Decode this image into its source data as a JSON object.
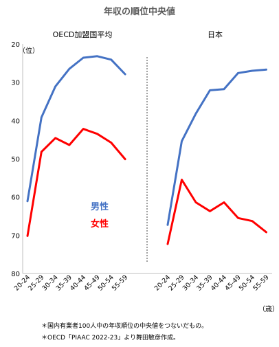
{
  "chart_data": {
    "type": "line",
    "title": "年収の順位中央値",
    "y_unit_label": "（位）",
    "x_unit_label": "（歳）",
    "ylim": [
      20,
      80
    ],
    "y_inverted": true,
    "y_ticks": [
      "20",
      "30",
      "40",
      "50",
      "60",
      "70",
      "80"
    ],
    "categories": [
      "20-24",
      "25-29",
      "30-34",
      "35-39",
      "40-44",
      "45-49",
      "50-54",
      "55-59"
    ],
    "grid": false,
    "legend_position": "inline-center",
    "panels": [
      {
        "title": "OECD加盟国平均",
        "series": [
          {
            "name": "男性",
            "color": "#4472c4",
            "values": [
              61.1,
              39.2,
              31.1,
              26.5,
              23.6,
              23.2,
              24.1,
              27.9
            ]
          },
          {
            "name": "女性",
            "color": "#ff0000",
            "values": [
              70.2,
              48.2,
              44.6,
              46.4,
              42.2,
              43.5,
              45.8,
              50.1
            ]
          }
        ]
      },
      {
        "title": "日本",
        "series": [
          {
            "name": "男性",
            "color": "#4472c4",
            "values": [
              67.3,
              45.4,
              38.2,
              32.1,
              31.8,
              27.6,
              27.0,
              26.7
            ]
          },
          {
            "name": "女性",
            "color": "#ff0000",
            "values": [
              72.3,
              55.5,
              61.4,
              63.7,
              61.4,
              65.5,
              66.3,
              69.2
            ]
          }
        ]
      }
    ],
    "legend": [
      "男性",
      "女性"
    ],
    "notes": [
      "＊国内有業者100人中の年収順位の中央値をつないだもの。",
      "＊OECD「PIAAC 2022-23」より舞田敏彦作成。"
    ]
  }
}
